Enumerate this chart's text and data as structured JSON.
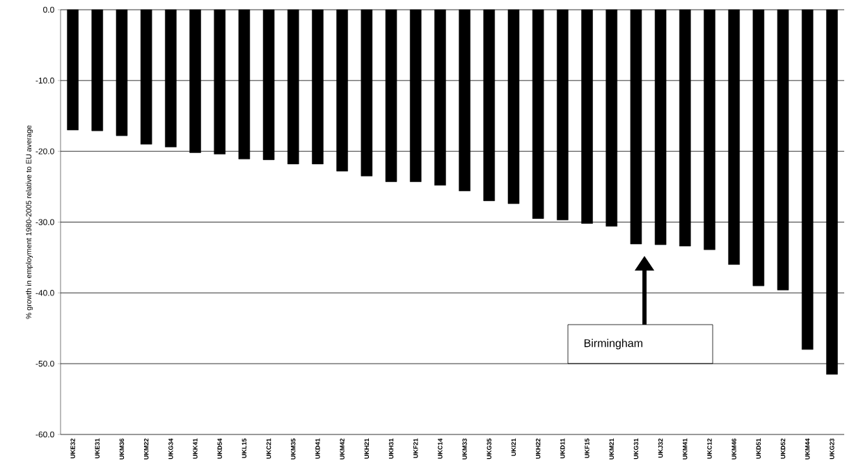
{
  "chart_data": {
    "type": "bar",
    "ylabel": "% growth in employment 1980-2005 relative to EU average",
    "categories": [
      "UKE32",
      "UKE31",
      "UKM36",
      "UKM22",
      "UKG34",
      "UKK41",
      "UKD54",
      "UKL15",
      "UKC21",
      "UKM35",
      "UKD41",
      "UKM42",
      "UKH21",
      "UKH31",
      "UKF21",
      "UKC14",
      "UKM33",
      "UKG35",
      "UKI21",
      "UKH22",
      "UKD11",
      "UKF15",
      "UKM21",
      "UKG31",
      "UKJ32",
      "UKM41",
      "UKC12",
      "UKM46",
      "UKD51",
      "UKD52",
      "UKM44",
      "UKG23"
    ],
    "values": [
      -17.0,
      -17.1,
      -17.8,
      -19.0,
      -19.4,
      -20.2,
      -20.4,
      -21.1,
      -21.2,
      -21.8,
      -21.8,
      -22.8,
      -23.5,
      -24.3,
      -24.3,
      -24.8,
      -25.6,
      -27.0,
      -27.4,
      -29.5,
      -29.7,
      -30.2,
      -30.6,
      -33.1,
      -33.2,
      -33.4,
      -33.9,
      -36.0,
      -39.0,
      -39.6,
      -48.0,
      -51.5
    ],
    "color": "#000000",
    "ylim": [
      -60,
      0
    ],
    "yticks": [
      {
        "value": -60,
        "label": "-60.0"
      },
      {
        "value": -50,
        "label": "-50.0"
      },
      {
        "value": -40,
        "label": "-40.0"
      },
      {
        "value": -30,
        "label": "-30.0"
      },
      {
        "value": -20,
        "label": "-20.0"
      },
      {
        "value": -10,
        "label": "-10.0"
      },
      {
        "value": 0,
        "label": "0.0"
      }
    ],
    "grid": "y",
    "annotations": [
      "Birmingham"
    ]
  }
}
